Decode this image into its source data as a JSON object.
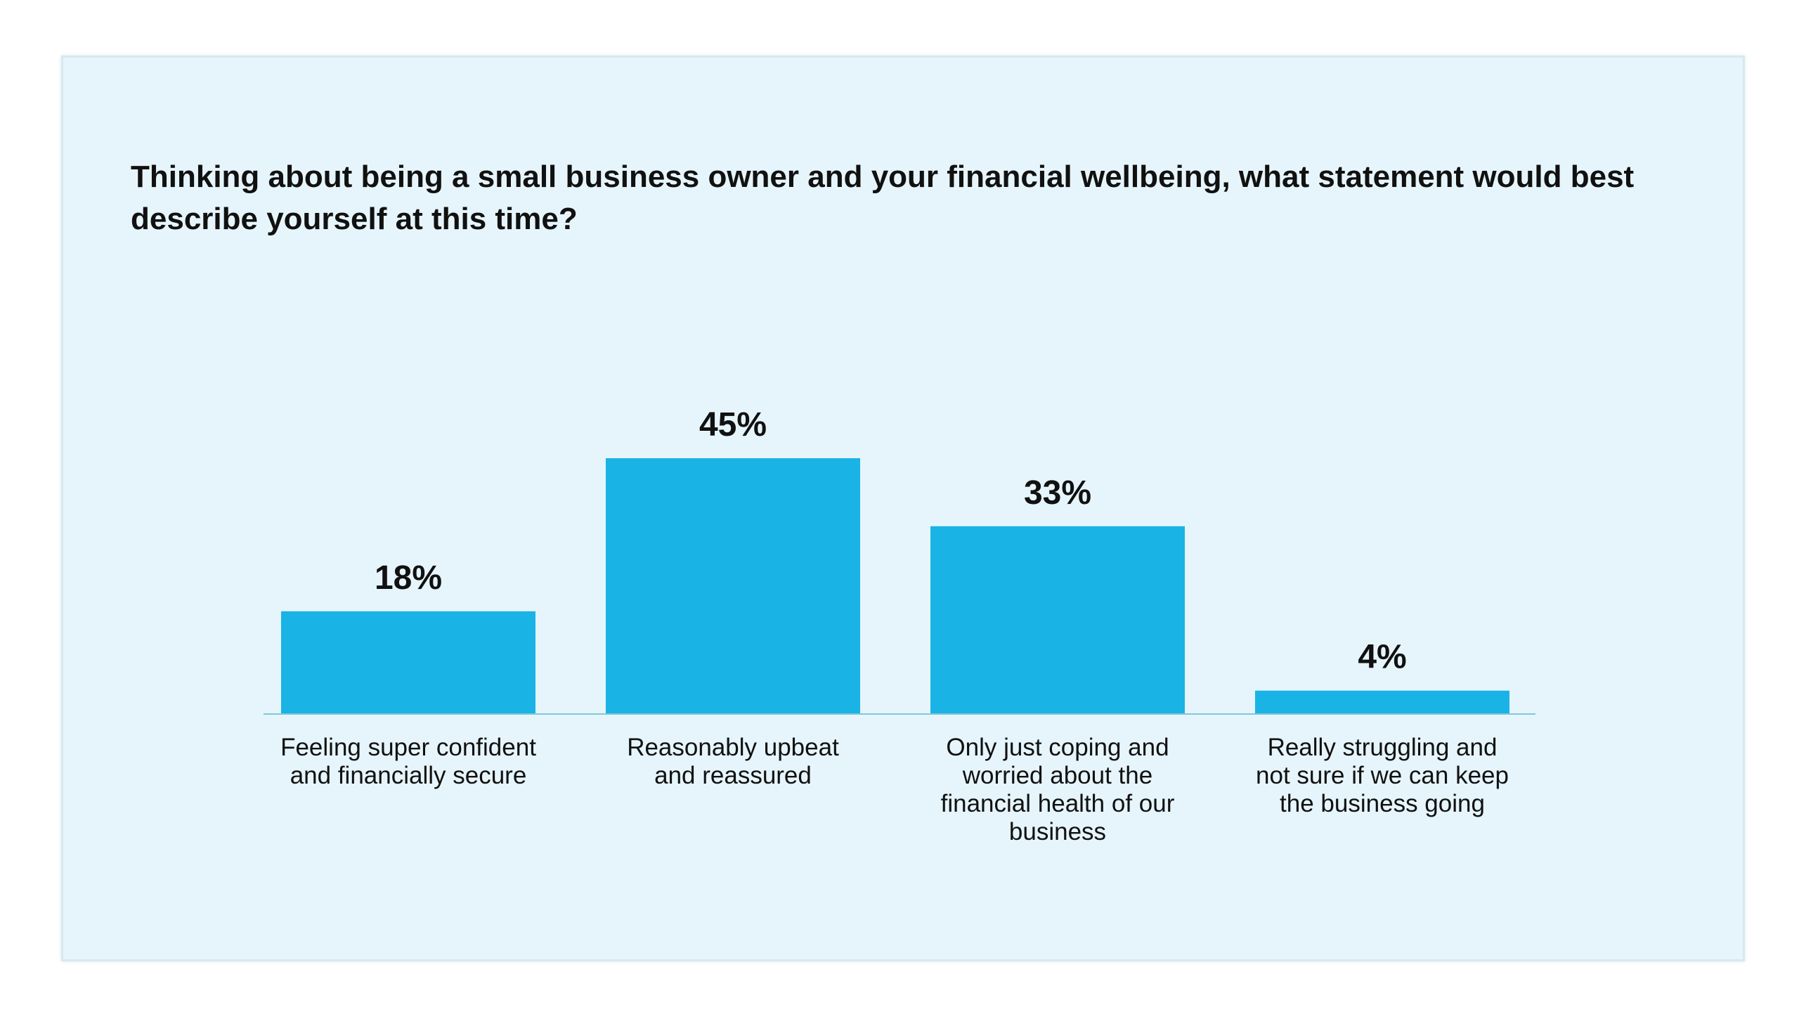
{
  "chart_data": {
    "type": "bar",
    "title": "Thinking about being a small business owner and your financial wellbeing, what statement would best describe yourself at this time?",
    "categories": [
      [
        "Feeling super confident",
        "and financially secure"
      ],
      [
        "Reasonably upbeat",
        "and reassured"
      ],
      [
        "Only just coping and",
        "worried about the",
        "financial health of our",
        "business"
      ],
      [
        "Really struggling and",
        "not sure if we can keep",
        "the business going"
      ]
    ],
    "values": [
      18,
      45,
      33,
      4
    ],
    "value_labels": [
      "18%",
      "45%",
      "33%",
      "4%"
    ],
    "ylim": [
      0,
      45
    ],
    "grid": false,
    "legend": "none",
    "xlabel": "",
    "ylabel": ""
  },
  "colors": {
    "bar": "#1ab3e6",
    "axis": "#7fc7d9",
    "panel_background": "#e6f5fb"
  }
}
